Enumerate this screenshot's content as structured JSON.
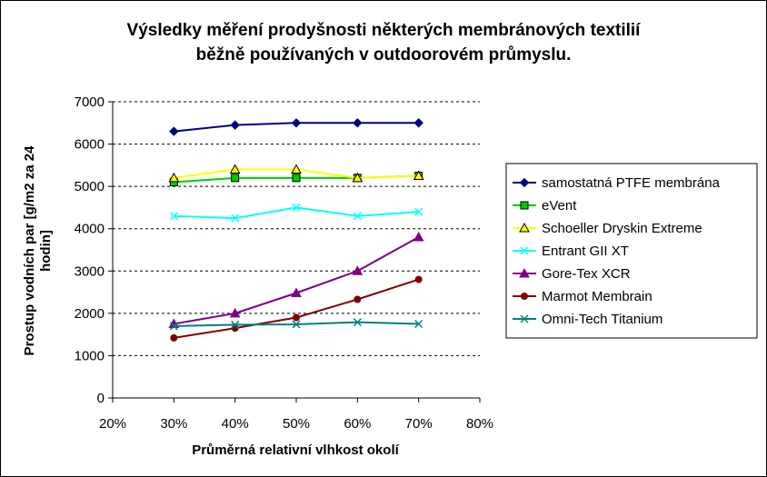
{
  "chart_data": {
    "type": "line",
    "title_lines": [
      "Výsledky měření prodyšnosti některých membránových textilií",
      "běžně používaných v outdoorovém průmyslu."
    ],
    "xlabel": "Průměrná relativní vlhkost okolí",
    "ylabel_lines": [
      "Prostup vodních par [g/m2 za 24",
      "hodin]"
    ],
    "x_ticks": [
      "20%",
      "30%",
      "40%",
      "50%",
      "60%",
      "70%",
      "80%"
    ],
    "y_ticks": [
      "0",
      "1000",
      "2000",
      "3000",
      "4000",
      "5000",
      "6000",
      "7000"
    ],
    "xlim": [
      20,
      80
    ],
    "ylim": [
      0,
      7000
    ],
    "x": [
      30,
      40,
      50,
      60,
      70
    ],
    "grid": "horizontal dashed",
    "legend_position": "right",
    "series": [
      {
        "name": "samostatná PTFE membrána",
        "values": [
          6300,
          6450,
          6500,
          6500,
          6500
        ],
        "color": "#000080",
        "marker": "diamond"
      },
      {
        "name": "eVent",
        "values": [
          5100,
          5200,
          5200,
          5200,
          5250
        ],
        "color": "#00cc00",
        "marker": "square"
      },
      {
        "name": "Schoeller Dryskin Extreme",
        "values": [
          5200,
          5400,
          5400,
          5200,
          5250
        ],
        "color": "#ffff00",
        "marker": "triangle"
      },
      {
        "name": "Entrant GII XT",
        "values": [
          4300,
          4250,
          4500,
          4300,
          4400
        ],
        "color": "#00ffff",
        "marker": "x"
      },
      {
        "name": "Gore-Tex XCR",
        "values": [
          1750,
          2000,
          2480,
          3000,
          3800
        ],
        "color": "#800080",
        "marker": "triangle"
      },
      {
        "name": "Marmot Membrain",
        "values": [
          1420,
          1650,
          1900,
          2330,
          2800
        ],
        "color": "#800000",
        "marker": "circle"
      },
      {
        "name": "Omni-Tech Titanium",
        "values": [
          1700,
          1730,
          1740,
          1790,
          1750
        ],
        "color": "#008080",
        "marker": "x"
      }
    ]
  }
}
